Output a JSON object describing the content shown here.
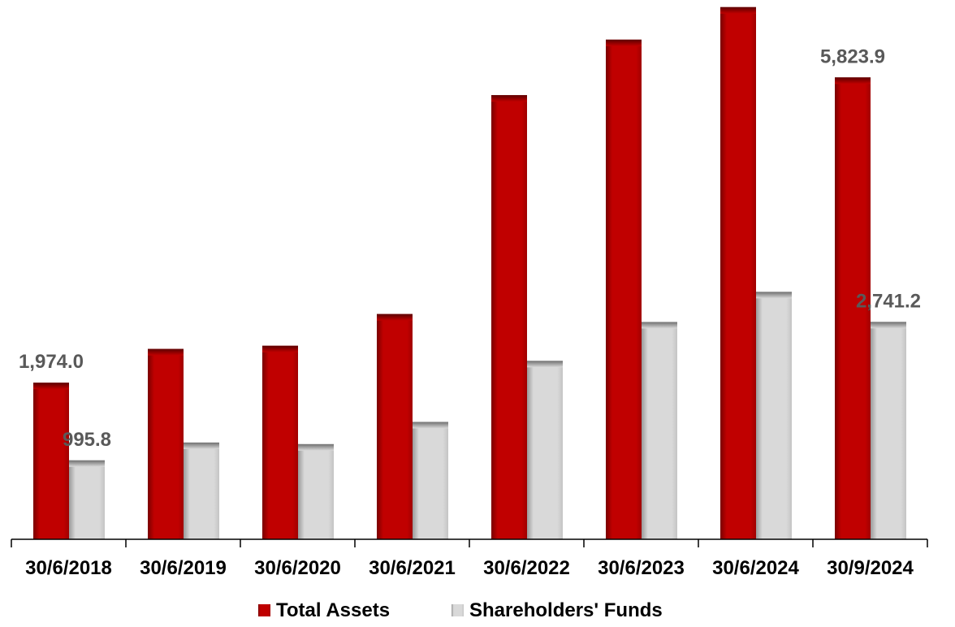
{
  "chart_data": {
    "type": "bar",
    "title": "",
    "xlabel": "",
    "ylabel": "",
    "ylim": [
      0,
      6800
    ],
    "grid": false,
    "legend_position": "bottom",
    "categories": [
      "30/6/2018",
      "30/6/2019",
      "30/6/2020",
      "30/6/2021",
      "30/6/2022",
      "30/6/2023",
      "30/6/2024",
      "30/9/2024"
    ],
    "series": [
      {
        "name": "Total Assets",
        "color": "#c00000",
        "values": [
          1974.0,
          2400,
          2440,
          2840,
          5600,
          6300,
          6710,
          5823.9
        ]
      },
      {
        "name": "Shareholders' Funds",
        "color": "#d9d9d9",
        "values": [
          995.8,
          1220,
          1200,
          1480,
          2250,
          2740,
          3120,
          2741.2
        ]
      }
    ],
    "data_labels": [
      {
        "series": 0,
        "index": 0,
        "text": "1,974.0"
      },
      {
        "series": 1,
        "index": 0,
        "text": "995.8"
      },
      {
        "series": 0,
        "index": 7,
        "text": "5,823.9"
      },
      {
        "series": 1,
        "index": 7,
        "text": "2,741.2"
      }
    ]
  }
}
